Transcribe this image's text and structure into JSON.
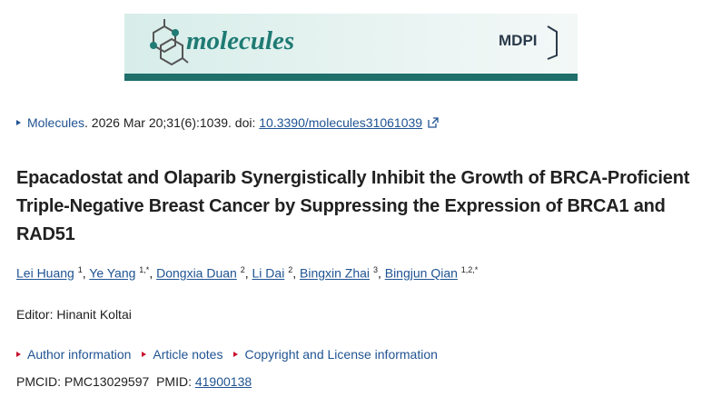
{
  "banner": {
    "journal": "molecules",
    "publisher": "MDPI"
  },
  "citation": {
    "journal": "Molecules",
    "details": ". 2026 Mar 20;31(6):1039. doi: ",
    "doi": "10.3390/molecules31061039"
  },
  "title": "Epacadostat and Olaparib Synergistically Inhibit the Growth of BRCA-Proficient Triple-Negative Breast Cancer by Suppressing the Expression of BRCA1 and RAD51",
  "author_separator": ",",
  "authors": [
    {
      "name": "Lei Huang",
      "affiliations": "1"
    },
    {
      "name": "Ye Yang",
      "affiliations": "1,*"
    },
    {
      "name": "Dongxia Duan",
      "affiliations": "2"
    },
    {
      "name": "Li Dai",
      "affiliations": "2"
    },
    {
      "name": "Bingxin Zhai",
      "affiliations": "3"
    },
    {
      "name": "Bingjun Qian",
      "affiliations": "1,2,*"
    }
  ],
  "editor": "Editor: Hinanit Koltai",
  "links": [
    "Author information",
    "Article notes",
    "Copyright and License information"
  ],
  "ids": {
    "pmcid_label": "PMCID:",
    "pmcid": "PMC13029597",
    "pmid_label": "PMID:",
    "pmid": "41900138"
  }
}
